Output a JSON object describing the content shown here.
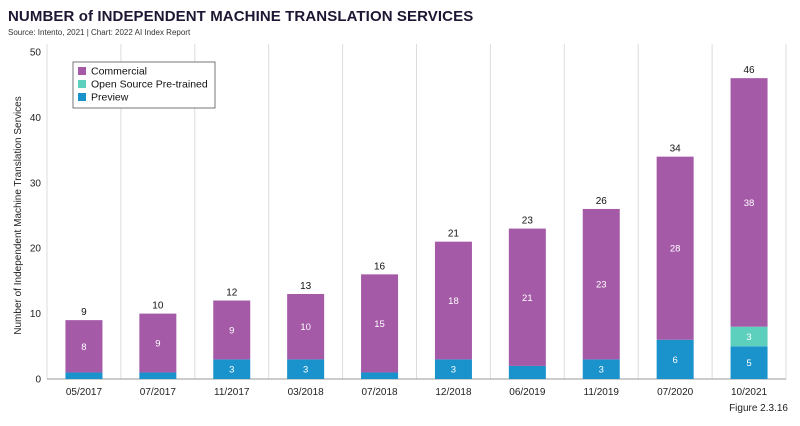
{
  "header": {
    "title": "NUMBER of INDEPENDENT MACHINE TRANSLATION SERVICES",
    "source": "Source: Intento, 2021 | Chart: 2022 AI Index Report"
  },
  "footer": {
    "figure": "Figure 2.3.16"
  },
  "colors": {
    "commercial": "#a55aa8",
    "open_source": "#5dcfbd",
    "preview": "#1a92cc"
  },
  "chart_data": {
    "type": "bar",
    "stacked": true,
    "title": "NUMBER of INDEPENDENT MACHINE TRANSLATION SERVICES",
    "ylabel": "Number of Independent Machine Translation Services",
    "xlabel": "",
    "ylim": [
      0,
      50
    ],
    "yticks": [
      0,
      10,
      20,
      30,
      40,
      50
    ],
    "grid": "vertical",
    "legend": "top-left",
    "categories": [
      "05/2017",
      "07/2017",
      "11/2017",
      "03/2018",
      "07/2018",
      "12/2018",
      "06/2019",
      "11/2019",
      "07/2020",
      "10/2021"
    ],
    "series": [
      {
        "name": "Preview",
        "key": "preview",
        "values": [
          1,
          1,
          3,
          3,
          1,
          3,
          2,
          3,
          6,
          5
        ],
        "labels": [
          "",
          "",
          "3",
          "3",
          "",
          "3",
          "",
          "3",
          "6",
          "5"
        ]
      },
      {
        "name": "Open Source Pre-trained",
        "key": "open_source",
        "values": [
          0,
          0,
          0,
          0,
          0,
          0,
          0,
          0,
          0,
          3
        ],
        "labels": [
          "",
          "",
          "",
          "",
          "",
          "",
          "",
          "",
          "",
          "3"
        ]
      },
      {
        "name": "Commercial",
        "key": "commercial",
        "values": [
          8,
          9,
          9,
          10,
          15,
          18,
          21,
          23,
          28,
          38
        ],
        "labels": [
          "8",
          "9",
          "9",
          "10",
          "15",
          "18",
          "21",
          "23",
          "28",
          "38"
        ]
      }
    ],
    "totals": [
      9,
      10,
      12,
      13,
      16,
      21,
      23,
      26,
      34,
      46
    ],
    "legend_order": [
      "Commercial",
      "Open Source Pre-trained",
      "Preview"
    ]
  }
}
